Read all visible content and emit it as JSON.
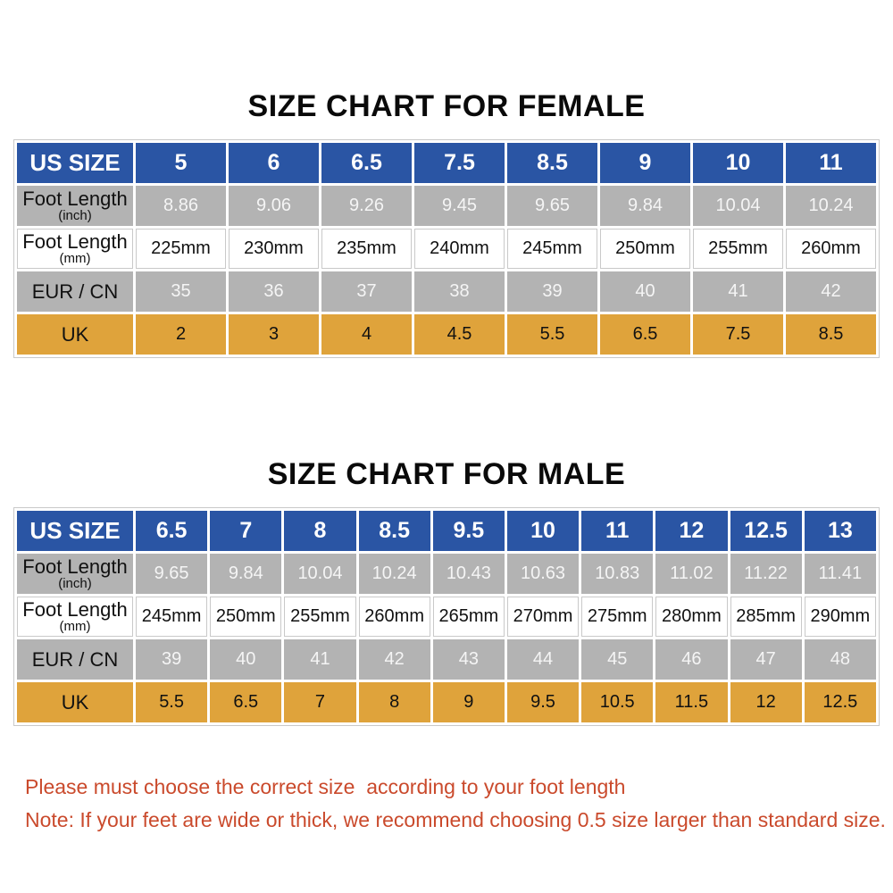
{
  "colors": {
    "header-blue": "#2a55a4",
    "row-gray": "#b3b3b3",
    "row-orange": "#dfa33b",
    "note-red": "#ca4a2c"
  },
  "chart_data": [
    {
      "type": "table",
      "title": "SIZE CHART FOR FEMALE",
      "rows": {
        "us": {
          "label": "US SIZE",
          "values": [
            "5",
            "6",
            "6.5",
            "7.5",
            "8.5",
            "9",
            "10",
            "11"
          ]
        },
        "inch": {
          "label": "Foot Length",
          "sublabel": "(inch)",
          "values": [
            "8.86",
            "9.06",
            "9.26",
            "9.45",
            "9.65",
            "9.84",
            "10.04",
            "10.24"
          ]
        },
        "mm": {
          "label": "Foot Length",
          "sublabel": "(mm)",
          "values": [
            "225mm",
            "230mm",
            "235mm",
            "240mm",
            "245mm",
            "250mm",
            "255mm",
            "260mm"
          ]
        },
        "eur": {
          "label": "EUR / CN",
          "values": [
            "35",
            "36",
            "37",
            "38",
            "39",
            "40",
            "41",
            "42"
          ]
        },
        "uk": {
          "label": "UK",
          "values": [
            "2",
            "3",
            "4",
            "4.5",
            "5.5",
            "6.5",
            "7.5",
            "8.5"
          ]
        }
      }
    },
    {
      "type": "table",
      "title": "SIZE CHART FOR MALE",
      "rows": {
        "us": {
          "label": "US SIZE",
          "values": [
            "6.5",
            "7",
            "8",
            "8.5",
            "9.5",
            "10",
            "11",
            "12",
            "12.5",
            "13"
          ]
        },
        "inch": {
          "label": "Foot Length",
          "sublabel": "(inch)",
          "values": [
            "9.65",
            "9.84",
            "10.04",
            "10.24",
            "10.43",
            "10.63",
            "10.83",
            "11.02",
            "11.22",
            "11.41"
          ]
        },
        "mm": {
          "label": "Foot Length",
          "sublabel": "(mm)",
          "values": [
            "245mm",
            "250mm",
            "255mm",
            "260mm",
            "265mm",
            "270mm",
            "275mm",
            "280mm",
            "285mm",
            "290mm"
          ]
        },
        "eur": {
          "label": "EUR / CN",
          "values": [
            "39",
            "40",
            "41",
            "42",
            "43",
            "44",
            "45",
            "46",
            "47",
            "48"
          ]
        },
        "uk": {
          "label": "UK",
          "values": [
            "5.5",
            "6.5",
            "7",
            "8",
            "9",
            "9.5",
            "10.5",
            "11.5",
            "12",
            "12.5"
          ]
        }
      }
    }
  ],
  "notes": {
    "line1": "Please must choose the correct size  according to your foot length",
    "line2": "Note: If your feet are wide or thick, we recommend choosing 0.5 size larger than standard size."
  }
}
